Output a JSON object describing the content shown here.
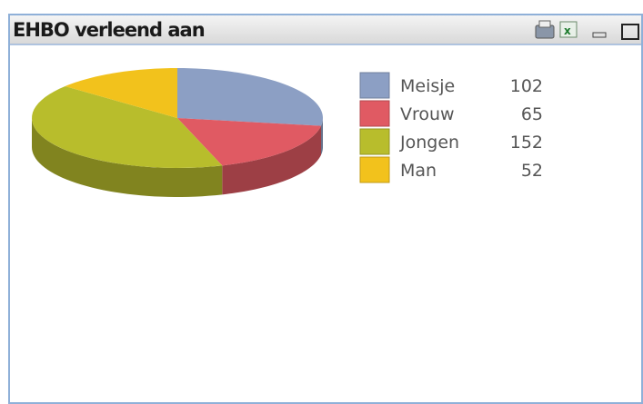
{
  "chart_data": {
    "type": "pie",
    "title": "EHBO verleend aan",
    "categories": [
      "Meisje",
      "Vrouw",
      "Jongen",
      "Man"
    ],
    "values": [
      102,
      65,
      152,
      52
    ],
    "colors": [
      "#8c9fc4",
      "#e05a63",
      "#b8bd2c",
      "#f2c21c"
    ],
    "legend": "right"
  }
}
